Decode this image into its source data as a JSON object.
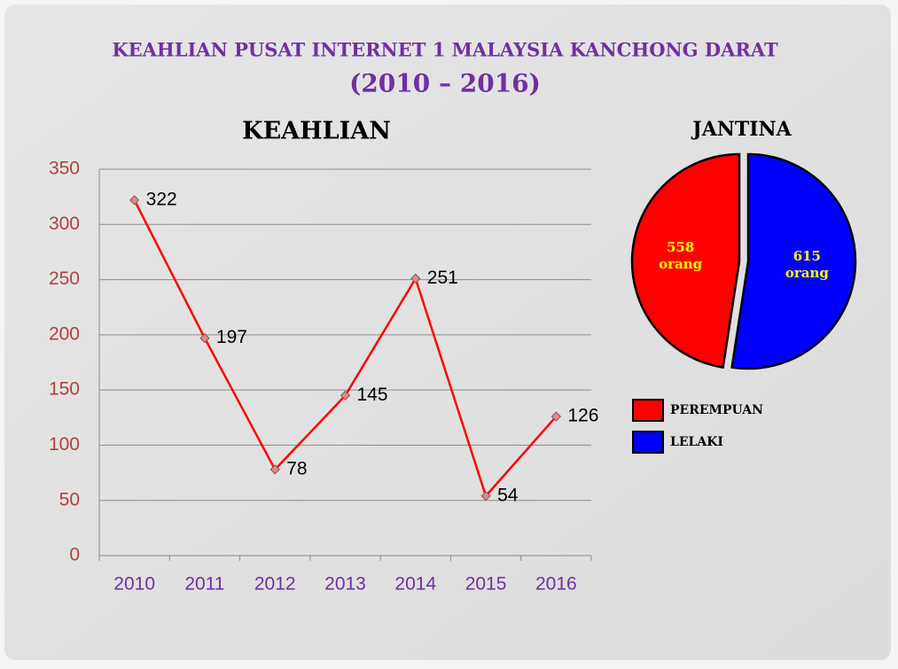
{
  "header": {
    "title": "KEAHLIAN PUSAT INTERNET 1 MALAYSIA KANCHONG DARAT",
    "subtitle": "(2010 – 2016)"
  },
  "chart_data": [
    {
      "type": "line",
      "title": "KEAHLIAN",
      "categories": [
        "2010",
        "2011",
        "2012",
        "2013",
        "2014",
        "2015",
        "2016"
      ],
      "values": [
        322,
        197,
        78,
        145,
        251,
        54,
        126
      ],
      "color": "#ff0000",
      "ylim": [
        0,
        350
      ],
      "yticks": [
        0,
        50,
        100,
        150,
        200,
        250,
        300,
        350
      ],
      "grid": true
    },
    {
      "type": "pie",
      "title": "JANTINA",
      "categories": [
        "PEREMPUAN",
        "LELAKI"
      ],
      "values": [
        558,
        615
      ],
      "value_labels": [
        "558 orang",
        "615 orang"
      ],
      "colors": [
        "#ff0000",
        "#0000ff"
      ]
    }
  ]
}
